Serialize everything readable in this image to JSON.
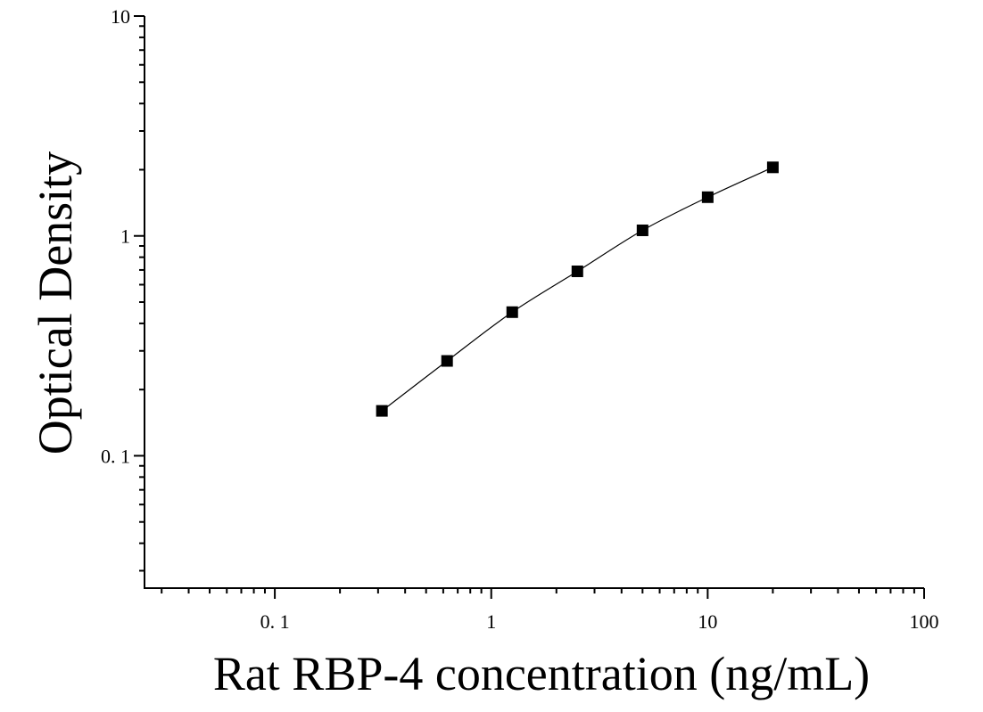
{
  "chart_data": {
    "type": "scatter",
    "title": "",
    "xlabel": "Rat RBP-4 concentration (ng/mL)",
    "ylabel": "Optical Density",
    "x_scale": "log",
    "y_scale": "log",
    "xlim": [
      0.025,
      100
    ],
    "ylim": [
      0.025,
      10
    ],
    "x_ticks": [
      {
        "value": 0.1,
        "label": "0. 1"
      },
      {
        "value": 1,
        "label": "1"
      },
      {
        "value": 10,
        "label": "10"
      },
      {
        "value": 100,
        "label": "100"
      }
    ],
    "y_ticks": [
      {
        "value": 0.1,
        "label": "0. 1"
      },
      {
        "value": 1,
        "label": "1"
      },
      {
        "value": 10,
        "label": "10"
      }
    ],
    "grid": false,
    "legend": "none",
    "marker": "square",
    "fit_line": true,
    "colors": {
      "marker": "#000000",
      "line": "#000000",
      "axis": "#000000"
    },
    "series": [
      {
        "x": [
          0.3125,
          0.625,
          1.25,
          2.5,
          5,
          10,
          20
        ],
        "y": [
          0.16,
          0.27,
          0.45,
          0.69,
          1.06,
          1.5,
          2.05
        ]
      }
    ]
  }
}
